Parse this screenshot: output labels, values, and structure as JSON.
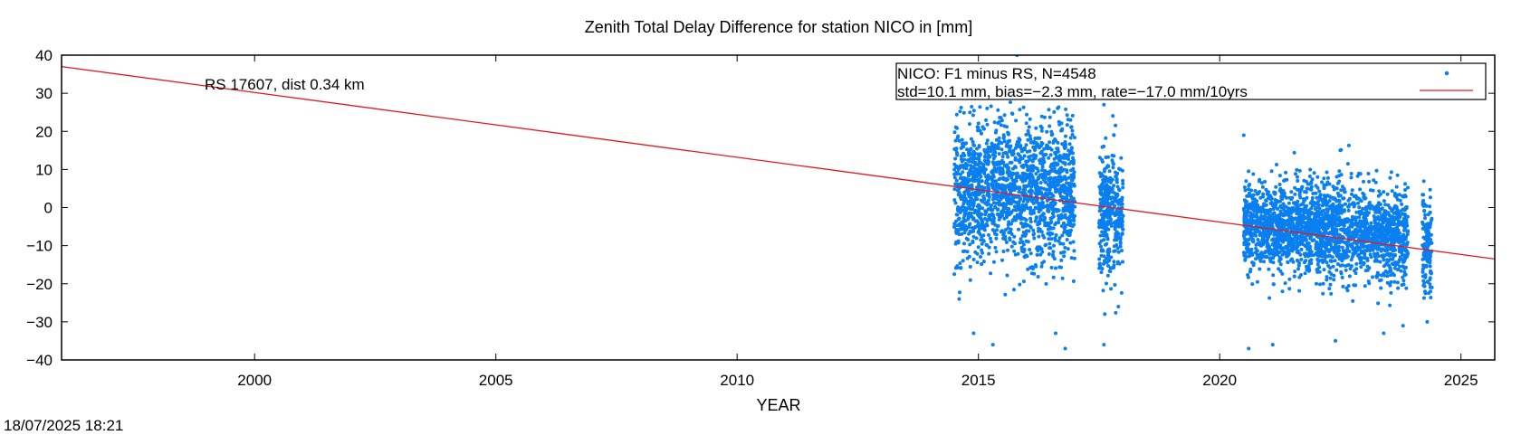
{
  "chart_data": {
    "type": "scatter",
    "title": "Zenith Total Delay Difference for station NICO in [mm]",
    "xlabel": "YEAR",
    "ylabel": "",
    "xlim": [
      1996.0,
      2025.7
    ],
    "ylim": [
      -40,
      40
    ],
    "x_ticks": [
      2000,
      2005,
      2010,
      2015,
      2020,
      2025
    ],
    "y_ticks": [
      -40,
      -30,
      -20,
      -10,
      0,
      10,
      20,
      30,
      40
    ],
    "grid": false,
    "legend_position": "top-right",
    "annotation": "RS 17607, dist 0.34 km",
    "series": [
      {
        "name": "NICO: F1 minus RS, N=4548",
        "kind": "points",
        "color": "#0a7ff0",
        "count": 4548,
        "clusters": [
          {
            "x_range": [
              2014.5,
              2017.0
            ],
            "y_mean": 4,
            "y_std": 9
          },
          {
            "x_range": [
              2017.5,
              2018.0
            ],
            "y_mean": -1,
            "y_std": 8
          },
          {
            "x_range": [
              2020.5,
              2023.9
            ],
            "y_mean": -6,
            "y_std": 6
          },
          {
            "x_range": [
              2024.2,
              2024.4
            ],
            "y_mean": -10,
            "y_std": 6
          }
        ],
        "outliers": [
          {
            "x": 2015.8,
            "y": 40
          },
          {
            "x": 2014.6,
            "y": -24
          },
          {
            "x": 2014.9,
            "y": -33
          },
          {
            "x": 2015.3,
            "y": -36
          },
          {
            "x": 2016.6,
            "y": -33
          },
          {
            "x": 2016.8,
            "y": -37
          },
          {
            "x": 2017.6,
            "y": -36
          },
          {
            "x": 2017.6,
            "y": 27
          },
          {
            "x": 2017.9,
            "y": -26
          },
          {
            "x": 2020.5,
            "y": 19
          },
          {
            "x": 2020.6,
            "y": -37
          },
          {
            "x": 2021.1,
            "y": -36
          },
          {
            "x": 2022.4,
            "y": -35
          },
          {
            "x": 2022.5,
            "y": 15
          },
          {
            "x": 2023.4,
            "y": -33
          },
          {
            "x": 2023.8,
            "y": -31
          },
          {
            "x": 2024.3,
            "y": -30
          }
        ]
      },
      {
        "name": "std=10.1 mm, bias=−2.3 mm, rate=−17.0 mm/10yrs",
        "kind": "line",
        "color": "#e31a1c",
        "x": [
          1996.0,
          2025.7
        ],
        "y": [
          37,
          -13.5
        ]
      }
    ]
  },
  "timestamp": "18/07/2025 18:21"
}
